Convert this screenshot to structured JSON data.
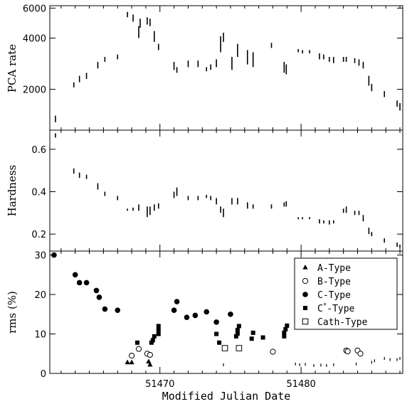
{
  "chart_data": [
    {
      "type": "scatter",
      "ylabel": "PCA rate",
      "xlim": [
        51462.2,
        51487.2
      ],
      "ylim": [
        1150,
        6200
      ],
      "yscale": "log",
      "yticks": [
        2000,
        4000,
        6000
      ],
      "yticklabels": [
        "2000",
        "4000",
        "6000"
      ],
      "segments": [
        {
          "x": 51462.6,
          "y": [
            1280,
            1400
          ]
        },
        {
          "x": 51463.9,
          "y": [
            2050,
            2200
          ]
        },
        {
          "x": 51464.3,
          "y": [
            2200,
            2400
          ]
        },
        {
          "x": 51464.8,
          "y": [
            2300,
            2500
          ]
        },
        {
          "x": 51465.6,
          "y": [
            2650,
            2900
          ]
        },
        {
          "x": 51466.1,
          "y": [
            2900,
            3100
          ]
        },
        {
          "x": 51467.0,
          "y": [
            3000,
            3200
          ]
        },
        {
          "x": 51467.7,
          "y": [
            5300,
            5700
          ]
        },
        {
          "x": 51468.1,
          "y": [
            5000,
            5500
          ]
        },
        {
          "x": 51468.5,
          "y": [
            4000,
            4700
          ]
        },
        {
          "x": 51468.6,
          "y": [
            4600,
            5200
          ]
        },
        {
          "x": 51469.1,
          "y": [
            4800,
            5300
          ]
        },
        {
          "x": 51469.3,
          "y": [
            4700,
            5200
          ]
        },
        {
          "x": 51469.6,
          "y": [
            3800,
            4400
          ]
        },
        {
          "x": 51469.9,
          "y": [
            3400,
            3700
          ]
        },
        {
          "x": 51471.0,
          "y": [
            2600,
            2900
          ]
        },
        {
          "x": 51471.2,
          "y": [
            2500,
            2700
          ]
        },
        {
          "x": 51472.0,
          "y": [
            2700,
            2950
          ]
        },
        {
          "x": 51472.7,
          "y": [
            2700,
            2950
          ]
        },
        {
          "x": 51473.3,
          "y": [
            2550,
            2700
          ]
        },
        {
          "x": 51473.6,
          "y": [
            2600,
            2800
          ]
        },
        {
          "x": 51474.0,
          "y": [
            2700,
            3000
          ]
        },
        {
          "x": 51474.3,
          "y": [
            3300,
            4100
          ]
        },
        {
          "x": 51474.5,
          "y": [
            3800,
            4300
          ]
        },
        {
          "x": 51475.1,
          "y": [
            2600,
            3100
          ]
        },
        {
          "x": 51475.5,
          "y": [
            3100,
            3700
          ]
        },
        {
          "x": 51476.2,
          "y": [
            2800,
            3400
          ]
        },
        {
          "x": 51476.6,
          "y": [
            2700,
            3300
          ]
        },
        {
          "x": 51477.9,
          "y": [
            3500,
            3750
          ]
        },
        {
          "x": 51478.8,
          "y": [
            2500,
            2900
          ]
        },
        {
          "x": 51478.95,
          "y": [
            2450,
            2800
          ]
        },
        {
          "x": 51479.8,
          "y": [
            3300,
            3450
          ]
        },
        {
          "x": 51480.1,
          "y": [
            3250,
            3400
          ]
        },
        {
          "x": 51480.6,
          "y": [
            3250,
            3400
          ]
        },
        {
          "x": 51481.3,
          "y": [
            3000,
            3250
          ]
        },
        {
          "x": 51481.6,
          "y": [
            3000,
            3200
          ]
        },
        {
          "x": 51482.0,
          "y": [
            2900,
            3100
          ]
        },
        {
          "x": 51482.3,
          "y": [
            2850,
            3100
          ]
        },
        {
          "x": 51483.0,
          "y": [
            2900,
            3100
          ]
        },
        {
          "x": 51483.2,
          "y": [
            2900,
            3100
          ]
        },
        {
          "x": 51483.8,
          "y": [
            2850,
            3050
          ]
        },
        {
          "x": 51484.1,
          "y": [
            2750,
            3000
          ]
        },
        {
          "x": 51484.4,
          "y": [
            2650,
            2900
          ]
        },
        {
          "x": 51484.8,
          "y": [
            2100,
            2400
          ]
        },
        {
          "x": 51485.0,
          "y": [
            1950,
            2150
          ]
        },
        {
          "x": 51485.9,
          "y": [
            1800,
            1950
          ]
        },
        {
          "x": 51486.8,
          "y": [
            1580,
            1720
          ]
        },
        {
          "x": 51487.0,
          "y": [
            1500,
            1660
          ]
        }
      ]
    },
    {
      "type": "scatter",
      "ylabel": "Hardness",
      "xlim": [
        51462.2,
        51487.2
      ],
      "ylim": [
        0.12,
        0.69
      ],
      "yticks": [
        0.2,
        0.4,
        0.6
      ],
      "yticklabels": [
        "0.2",
        "0.4",
        "0.6"
      ],
      "segments": [
        {
          "x": 51462.6,
          "y": [
            0.655,
            0.675
          ]
        },
        {
          "x": 51463.9,
          "y": [
            0.485,
            0.51
          ]
        },
        {
          "x": 51464.3,
          "y": [
            0.465,
            0.49
          ]
        },
        {
          "x": 51464.8,
          "y": [
            0.46,
            0.48
          ]
        },
        {
          "x": 51465.6,
          "y": [
            0.41,
            0.44
          ]
        },
        {
          "x": 51466.1,
          "y": [
            0.38,
            0.4
          ]
        },
        {
          "x": 51467.0,
          "y": [
            0.36,
            0.38
          ]
        },
        {
          "x": 51467.7,
          "y": [
            0.31,
            0.32
          ]
        },
        {
          "x": 51468.1,
          "y": [
            0.31,
            0.325
          ]
        },
        {
          "x": 51468.5,
          "y": [
            0.31,
            0.34
          ]
        },
        {
          "x": 51469.1,
          "y": [
            0.28,
            0.33
          ]
        },
        {
          "x": 51469.3,
          "y": [
            0.29,
            0.33
          ]
        },
        {
          "x": 51469.6,
          "y": [
            0.31,
            0.34
          ]
        },
        {
          "x": 51469.9,
          "y": [
            0.32,
            0.345
          ]
        },
        {
          "x": 51471.0,
          "y": [
            0.37,
            0.4
          ]
        },
        {
          "x": 51471.2,
          "y": [
            0.38,
            0.42
          ]
        },
        {
          "x": 51472.0,
          "y": [
            0.36,
            0.38
          ]
        },
        {
          "x": 51472.7,
          "y": [
            0.36,
            0.38
          ]
        },
        {
          "x": 51473.3,
          "y": [
            0.37,
            0.385
          ]
        },
        {
          "x": 51473.6,
          "y": [
            0.36,
            0.38
          ]
        },
        {
          "x": 51474.0,
          "y": [
            0.34,
            0.37
          ]
        },
        {
          "x": 51474.3,
          "y": [
            0.3,
            0.33
          ]
        },
        {
          "x": 51474.5,
          "y": [
            0.28,
            0.32
          ]
        },
        {
          "x": 51475.1,
          "y": [
            0.34,
            0.37
          ]
        },
        {
          "x": 51475.5,
          "y": [
            0.34,
            0.37
          ]
        },
        {
          "x": 51476.2,
          "y": [
            0.32,
            0.35
          ]
        },
        {
          "x": 51476.6,
          "y": [
            0.32,
            0.34
          ]
        },
        {
          "x": 51477.9,
          "y": [
            0.32,
            0.34
          ]
        },
        {
          "x": 51478.8,
          "y": [
            0.33,
            0.35
          ]
        },
        {
          "x": 51478.95,
          "y": [
            0.33,
            0.355
          ]
        },
        {
          "x": 51479.8,
          "y": [
            0.27,
            0.28
          ]
        },
        {
          "x": 51480.1,
          "y": [
            0.27,
            0.28
          ]
        },
        {
          "x": 51480.6,
          "y": [
            0.27,
            0.28
          ]
        },
        {
          "x": 51481.3,
          "y": [
            0.25,
            0.27
          ]
        },
        {
          "x": 51481.6,
          "y": [
            0.25,
            0.265
          ]
        },
        {
          "x": 51482.0,
          "y": [
            0.245,
            0.265
          ]
        },
        {
          "x": 51482.3,
          "y": [
            0.25,
            0.265
          ]
        },
        {
          "x": 51483.0,
          "y": [
            0.3,
            0.32
          ]
        },
        {
          "x": 51483.2,
          "y": [
            0.3,
            0.33
          ]
        },
        {
          "x": 51483.8,
          "y": [
            0.29,
            0.31
          ]
        },
        {
          "x": 51484.1,
          "y": [
            0.29,
            0.31
          ]
        },
        {
          "x": 51484.4,
          "y": [
            0.26,
            0.29
          ]
        },
        {
          "x": 51484.8,
          "y": [
            0.2,
            0.23
          ]
        },
        {
          "x": 51485.0,
          "y": [
            0.19,
            0.21
          ]
        },
        {
          "x": 51485.9,
          "y": [
            0.16,
            0.18
          ]
        },
        {
          "x": 51486.8,
          "y": [
            0.14,
            0.16
          ]
        },
        {
          "x": 51487.0,
          "y": [
            0.135,
            0.15
          ]
        }
      ]
    },
    {
      "type": "scatter",
      "ylabel": "rms (%)",
      "xlabel": "Modified Julian Date",
      "xlim": [
        51462.2,
        51487.2
      ],
      "ylim": [
        0,
        31
      ],
      "yticks": [
        0,
        10,
        20,
        30
      ],
      "yticklabels": [
        "0",
        "10",
        "20",
        "30"
      ],
      "xticks": [
        51470,
        51480
      ],
      "xticklabels": [
        "51470",
        "51480"
      ],
      "legend": {
        "position": "top-right",
        "entries": [
          {
            "marker": "triangle",
            "label": "A-Type"
          },
          {
            "marker": "open-circle",
            "label": "B-Type"
          },
          {
            "marker": "filled-circle",
            "label": "C-Type"
          },
          {
            "marker": "filled-square",
            "label": "C",
            "sup": "*",
            "suffix": "-Type"
          },
          {
            "marker": "open-square",
            "label": "Cath-Type"
          }
        ]
      },
      "series": [
        {
          "name": "A-Type",
          "marker": "triangle",
          "points": [
            {
              "x": 51467.7,
              "y": 2.8
            },
            {
              "x": 51468.0,
              "y": 2.8
            },
            {
              "x": 51469.2,
              "y": 3.0
            },
            {
              "x": 51469.3,
              "y": 2.2
            }
          ]
        },
        {
          "name": "B-Type",
          "marker": "open-circle",
          "points": [
            {
              "x": 51468.0,
              "y": 4.5
            },
            {
              "x": 51468.5,
              "y": 6.2
            },
            {
              "x": 51469.1,
              "y": 5.0
            },
            {
              "x": 51469.3,
              "y": 4.7
            },
            {
              "x": 51478.0,
              "y": 5.5
            },
            {
              "x": 51483.2,
              "y": 5.8
            },
            {
              "x": 51483.3,
              "y": 5.6
            },
            {
              "x": 51484.0,
              "y": 5.8
            },
            {
              "x": 51484.2,
              "y": 5.0
            }
          ]
        },
        {
          "name": "C-Type",
          "marker": "filled-circle",
          "points": [
            {
              "x": 51462.5,
              "y": 30.0
            },
            {
              "x": 51464.0,
              "y": 25.0
            },
            {
              "x": 51464.3,
              "y": 23.0
            },
            {
              "x": 51464.8,
              "y": 23.0
            },
            {
              "x": 51465.5,
              "y": 21.0
            },
            {
              "x": 51465.7,
              "y": 19.3
            },
            {
              "x": 51466.1,
              "y": 16.3
            },
            {
              "x": 51467.0,
              "y": 16.0
            },
            {
              "x": 51471.0,
              "y": 16.0
            },
            {
              "x": 51471.2,
              "y": 18.2
            },
            {
              "x": 51471.9,
              "y": 14.2
            },
            {
              "x": 51472.5,
              "y": 14.7
            },
            {
              "x": 51473.3,
              "y": 15.6
            },
            {
              "x": 51474.0,
              "y": 13.0
            },
            {
              "x": 51475.0,
              "y": 15.0
            }
          ]
        },
        {
          "name": "C*-Type",
          "marker": "filled-square",
          "points": [
            {
              "x": 51468.4,
              "y": 7.8
            },
            {
              "x": 51469.4,
              "y": 7.8
            },
            {
              "x": 51469.5,
              "y": 8.4
            },
            {
              "x": 51469.6,
              "y": 9.4
            },
            {
              "x": 51469.9,
              "y": 10.0
            },
            {
              "x": 51469.9,
              "y": 11.0
            },
            {
              "x": 51469.9,
              "y": 12.0
            },
            {
              "x": 51474.0,
              "y": 10.0
            },
            {
              "x": 51474.2,
              "y": 7.8
            },
            {
              "x": 51475.4,
              "y": 9.4
            },
            {
              "x": 51475.5,
              "y": 10.1
            },
            {
              "x": 51475.5,
              "y": 11.0
            },
            {
              "x": 51475.6,
              "y": 12.0
            },
            {
              "x": 51476.5,
              "y": 8.8
            },
            {
              "x": 51476.6,
              "y": 10.3
            },
            {
              "x": 51477.3,
              "y": 9.1
            },
            {
              "x": 51478.8,
              "y": 9.4
            },
            {
              "x": 51478.8,
              "y": 10.3
            },
            {
              "x": 51478.9,
              "y": 11.2
            },
            {
              "x": 51479.0,
              "y": 12.1
            }
          ]
        },
        {
          "name": "Cath-Type",
          "marker": "open-square",
          "points": [
            {
              "x": 51474.6,
              "y": 6.4
            },
            {
              "x": 51475.6,
              "y": 6.4
            }
          ]
        },
        {
          "name": "",
          "marker": "dash",
          "points": [
            {
              "x": 51474.5,
              "y": 2.2
            },
            {
              "x": 51479.6,
              "y": 2.4
            },
            {
              "x": 51479.9,
              "y": 2.2
            },
            {
              "x": 51480.3,
              "y": 2.3
            },
            {
              "x": 51480.9,
              "y": 2.0
            },
            {
              "x": 51481.4,
              "y": 2.1
            },
            {
              "x": 51481.8,
              "y": 2.0
            },
            {
              "x": 51482.3,
              "y": 2.2
            },
            {
              "x": 51483.9,
              "y": 2.4
            },
            {
              "x": 51485.0,
              "y": 2.8
            },
            {
              "x": 51485.2,
              "y": 3.2
            },
            {
              "x": 51485.9,
              "y": 3.8
            },
            {
              "x": 51486.3,
              "y": 3.5
            },
            {
              "x": 51486.8,
              "y": 3.5
            },
            {
              "x": 51487.0,
              "y": 3.8
            }
          ]
        }
      ]
    }
  ]
}
